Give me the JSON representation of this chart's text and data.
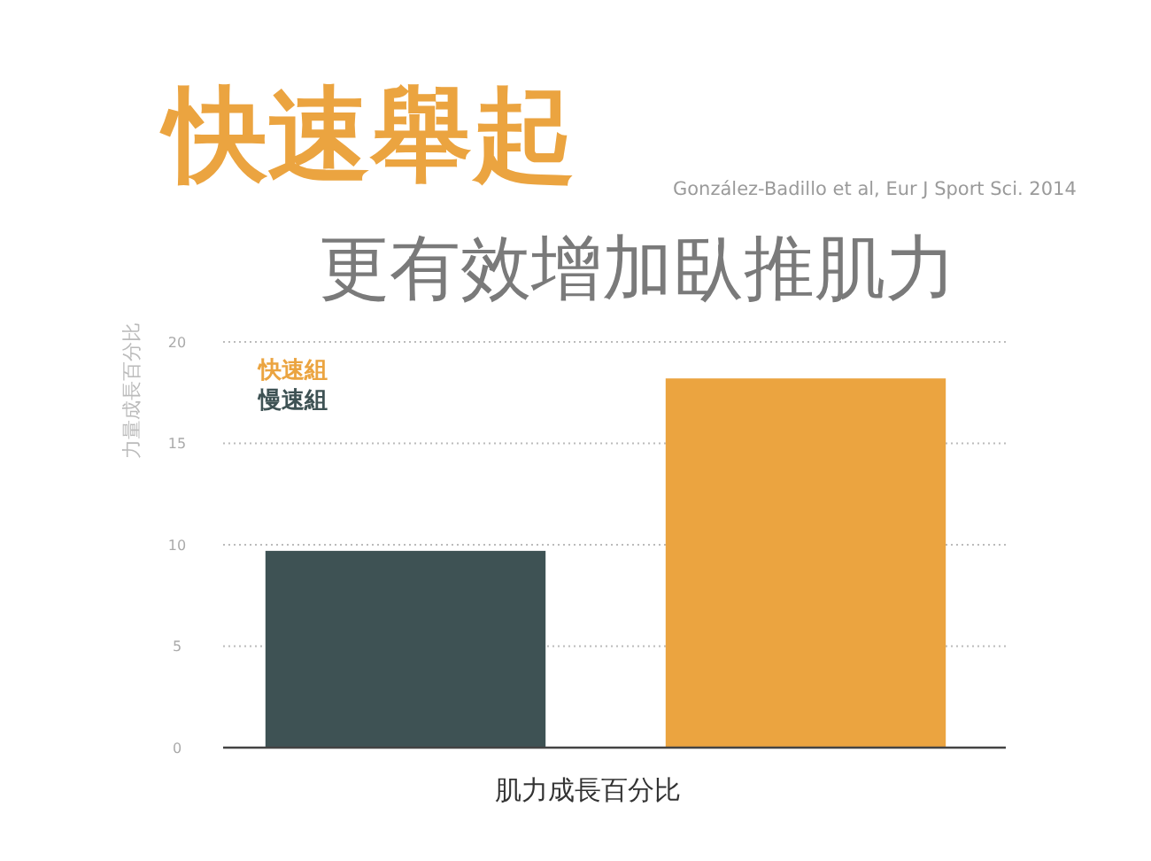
{
  "chart_data": {
    "type": "bar",
    "title": "快速舉起",
    "subtitle": "更有效增加臥推肌力",
    "annotations": [
      "González-Badillo et al, Eur J Sport Sci. 2014"
    ],
    "xlabel": "肌力成長百分比",
    "ylabel": "力量成長百分比",
    "categories": [
      null,
      null
    ],
    "series": [
      {
        "name": "快速組",
        "color": "#eba440",
        "values": [
          null,
          18.2
        ]
      },
      {
        "name": "慢速組",
        "color": "#3e5254",
        "values": [
          9.7,
          null
        ]
      }
    ],
    "ylim": [
      0,
      20
    ],
    "yticks": [
      0,
      5,
      10,
      15,
      20
    ],
    "grid": "y",
    "legend": "top left"
  }
}
